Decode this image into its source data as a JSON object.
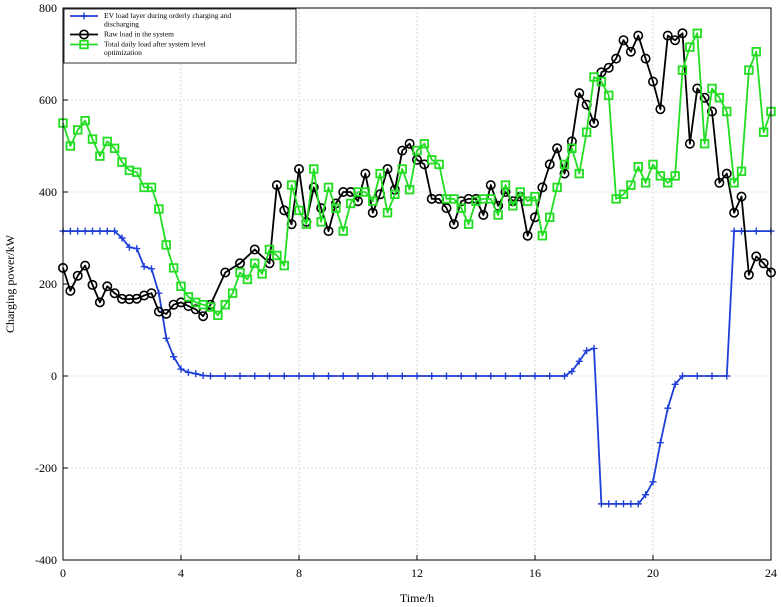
{
  "chart_data": {
    "type": "line",
    "xlabel": "Time/h",
    "ylabel": "Charging power/kW",
    "xlim": [
      0,
      24
    ],
    "ylim": [
      -400,
      800
    ],
    "xticks": [
      0,
      4,
      8,
      12,
      16,
      20,
      24
    ],
    "yticks": [
      -400,
      -200,
      0,
      200,
      400,
      600,
      800
    ],
    "grid": true,
    "legend_position": "top-left",
    "series": [
      {
        "name": "EV load layer during orderly charging and discharging",
        "color": "#1f3fd8",
        "marker": "plus",
        "points": [
          [
            0,
            315
          ],
          [
            0.25,
            315
          ],
          [
            0.5,
            315
          ],
          [
            0.75,
            315
          ],
          [
            1,
            315
          ],
          [
            1.25,
            315
          ],
          [
            1.5,
            315
          ],
          [
            1.75,
            315
          ],
          [
            2,
            300
          ],
          [
            2.25,
            280
          ],
          [
            2.5,
            277
          ],
          [
            2.75,
            238
          ],
          [
            3,
            233
          ],
          [
            3.25,
            180
          ],
          [
            3.5,
            82
          ],
          [
            3.75,
            42
          ],
          [
            4,
            15
          ],
          [
            4.25,
            8
          ],
          [
            4.5,
            5
          ],
          [
            4.75,
            1
          ],
          [
            5,
            0
          ],
          [
            5.5,
            0
          ],
          [
            6,
            0
          ],
          [
            6.5,
            0
          ],
          [
            7,
            0
          ],
          [
            7.5,
            0
          ],
          [
            8,
            0
          ],
          [
            8.5,
            0
          ],
          [
            9,
            0
          ],
          [
            9.5,
            0
          ],
          [
            10,
            0
          ],
          [
            10.5,
            0
          ],
          [
            11,
            0
          ],
          [
            11.5,
            0
          ],
          [
            12,
            0
          ],
          [
            12.5,
            0
          ],
          [
            13,
            0
          ],
          [
            13.5,
            0
          ],
          [
            14,
            0
          ],
          [
            14.5,
            0
          ],
          [
            15,
            0
          ],
          [
            15.5,
            0
          ],
          [
            16,
            0
          ],
          [
            16.5,
            0
          ],
          [
            17,
            0
          ],
          [
            17.25,
            10
          ],
          [
            17.5,
            32
          ],
          [
            17.75,
            55
          ],
          [
            18,
            60
          ],
          [
            18.25,
            -278
          ],
          [
            18.5,
            -278
          ],
          [
            18.75,
            -278
          ],
          [
            19,
            -278
          ],
          [
            19.25,
            -278
          ],
          [
            19.5,
            -278
          ],
          [
            19.75,
            -258
          ],
          [
            20,
            -230
          ],
          [
            20.25,
            -145
          ],
          [
            20.5,
            -70
          ],
          [
            20.75,
            -18
          ],
          [
            21,
            0
          ],
          [
            21.5,
            0
          ],
          [
            22,
            0
          ],
          [
            22.5,
            0
          ],
          [
            22.75,
            315
          ],
          [
            23,
            315
          ],
          [
            23.5,
            315
          ],
          [
            24,
            315
          ]
        ]
      },
      {
        "name": "Raw load in the system",
        "color": "#000000",
        "marker": "circle",
        "points": [
          [
            0,
            235
          ],
          [
            0.25,
            185
          ],
          [
            0.5,
            218
          ],
          [
            0.75,
            240
          ],
          [
            1,
            198
          ],
          [
            1.25,
            160
          ],
          [
            1.5,
            195
          ],
          [
            1.75,
            180
          ],
          [
            2,
            168
          ],
          [
            2.25,
            167
          ],
          [
            2.5,
            168
          ],
          [
            2.75,
            175
          ],
          [
            3,
            180
          ],
          [
            3.25,
            140
          ],
          [
            3.5,
            135
          ],
          [
            3.75,
            155
          ],
          [
            4,
            160
          ],
          [
            4.25,
            152
          ],
          [
            4.5,
            145
          ],
          [
            4.75,
            130
          ],
          [
            5,
            155
          ],
          [
            5.5,
            225
          ],
          [
            6,
            245
          ],
          [
            6.5,
            275
          ],
          [
            7,
            245
          ],
          [
            7.25,
            415
          ],
          [
            7.5,
            360
          ],
          [
            7.75,
            330
          ],
          [
            8,
            450
          ],
          [
            8.25,
            335
          ],
          [
            8.5,
            410
          ],
          [
            8.75,
            365
          ],
          [
            9,
            315
          ],
          [
            9.25,
            375
          ],
          [
            9.5,
            400
          ],
          [
            9.75,
            400
          ],
          [
            10,
            380
          ],
          [
            10.25,
            440
          ],
          [
            10.5,
            355
          ],
          [
            10.75,
            395
          ],
          [
            11,
            450
          ],
          [
            11.25,
            405
          ],
          [
            11.5,
            490
          ],
          [
            11.75,
            505
          ],
          [
            12,
            470
          ],
          [
            12.25,
            460
          ],
          [
            12.5,
            385
          ],
          [
            12.75,
            385
          ],
          [
            13,
            365
          ],
          [
            13.25,
            330
          ],
          [
            13.5,
            380
          ],
          [
            13.75,
            385
          ],
          [
            14,
            385
          ],
          [
            14.25,
            350
          ],
          [
            14.5,
            415
          ],
          [
            14.75,
            370
          ],
          [
            15,
            400
          ],
          [
            15.25,
            380
          ],
          [
            15.5,
            390
          ],
          [
            15.75,
            305
          ],
          [
            16,
            345
          ],
          [
            16.25,
            410
          ],
          [
            16.5,
            460
          ],
          [
            16.75,
            495
          ],
          [
            17,
            440
          ],
          [
            17.25,
            510
          ],
          [
            17.5,
            615
          ],
          [
            17.75,
            590
          ],
          [
            18,
            550
          ],
          [
            18.25,
            660
          ],
          [
            18.5,
            670
          ],
          [
            18.75,
            690
          ],
          [
            19,
            730
          ],
          [
            19.25,
            705
          ],
          [
            19.5,
            740
          ],
          [
            19.75,
            690
          ],
          [
            20,
            640
          ],
          [
            20.25,
            580
          ],
          [
            20.5,
            740
          ],
          [
            20.75,
            730
          ],
          [
            21,
            745
          ],
          [
            21.25,
            505
          ],
          [
            21.5,
            625
          ],
          [
            21.75,
            605
          ],
          [
            22,
            575
          ],
          [
            22.25,
            420
          ],
          [
            22.5,
            440
          ],
          [
            22.75,
            355
          ],
          [
            23,
            390
          ],
          [
            23.25,
            220
          ],
          [
            23.5,
            260
          ],
          [
            23.75,
            245
          ],
          [
            24,
            225
          ]
        ]
      },
      {
        "name": "Total daily load after system level optimization",
        "color": "#22dd22",
        "marker": "square",
        "points": [
          [
            0,
            550
          ],
          [
            0.25,
            500
          ],
          [
            0.5,
            535
          ],
          [
            0.75,
            555
          ],
          [
            1,
            515
          ],
          [
            1.25,
            478
          ],
          [
            1.5,
            510
          ],
          [
            1.75,
            495
          ],
          [
            2,
            465
          ],
          [
            2.25,
            447
          ],
          [
            2.5,
            443
          ],
          [
            2.75,
            410
          ],
          [
            3,
            410
          ],
          [
            3.25,
            363
          ],
          [
            3.5,
            285
          ],
          [
            3.75,
            235
          ],
          [
            4,
            195
          ],
          [
            4.25,
            172
          ],
          [
            4.5,
            160
          ],
          [
            4.75,
            155
          ],
          [
            5,
            150
          ],
          [
            5.25,
            132
          ],
          [
            5.5,
            155
          ],
          [
            5.75,
            180
          ],
          [
            6,
            225
          ],
          [
            6.25,
            210
          ],
          [
            6.5,
            245
          ],
          [
            6.75,
            222
          ],
          [
            7,
            275
          ],
          [
            7.25,
            262
          ],
          [
            7.5,
            240
          ],
          [
            7.75,
            415
          ],
          [
            8,
            360
          ],
          [
            8.25,
            330
          ],
          [
            8.5,
            450
          ],
          [
            8.75,
            335
          ],
          [
            9,
            410
          ],
          [
            9.25,
            365
          ],
          [
            9.5,
            315
          ],
          [
            9.75,
            375
          ],
          [
            10,
            400
          ],
          [
            10.25,
            400
          ],
          [
            10.5,
            380
          ],
          [
            10.75,
            440
          ],
          [
            11,
            355
          ],
          [
            11.25,
            395
          ],
          [
            11.5,
            450
          ],
          [
            11.75,
            405
          ],
          [
            12,
            490
          ],
          [
            12.25,
            505
          ],
          [
            12.5,
            470
          ],
          [
            12.75,
            460
          ],
          [
            13,
            385
          ],
          [
            13.25,
            385
          ],
          [
            13.5,
            365
          ],
          [
            13.75,
            330
          ],
          [
            14,
            380
          ],
          [
            14.25,
            385
          ],
          [
            14.5,
            385
          ],
          [
            14.75,
            350
          ],
          [
            15,
            415
          ],
          [
            15.25,
            370
          ],
          [
            15.5,
            400
          ],
          [
            15.75,
            380
          ],
          [
            16,
            390
          ],
          [
            16.25,
            305
          ],
          [
            16.5,
            345
          ],
          [
            16.75,
            410
          ],
          [
            17,
            460
          ],
          [
            17.25,
            495
          ],
          [
            17.5,
            440
          ],
          [
            17.75,
            530
          ],
          [
            18,
            650
          ],
          [
            18.25,
            640
          ],
          [
            18.5,
            610
          ],
          [
            18.75,
            385
          ],
          [
            19,
            395
          ],
          [
            19.25,
            415
          ],
          [
            19.5,
            455
          ],
          [
            19.75,
            420
          ],
          [
            20,
            460
          ],
          [
            20.25,
            435
          ],
          [
            20.5,
            420
          ],
          [
            20.75,
            435
          ],
          [
            21,
            665
          ],
          [
            21.25,
            715
          ],
          [
            21.5,
            745
          ],
          [
            21.75,
            505
          ],
          [
            22,
            625
          ],
          [
            22.25,
            605
          ],
          [
            22.5,
            575
          ],
          [
            22.75,
            420
          ],
          [
            23,
            445
          ],
          [
            23.25,
            665
          ],
          [
            23.5,
            705
          ],
          [
            23.75,
            530
          ],
          [
            24,
            575
          ]
        ]
      }
    ]
  }
}
